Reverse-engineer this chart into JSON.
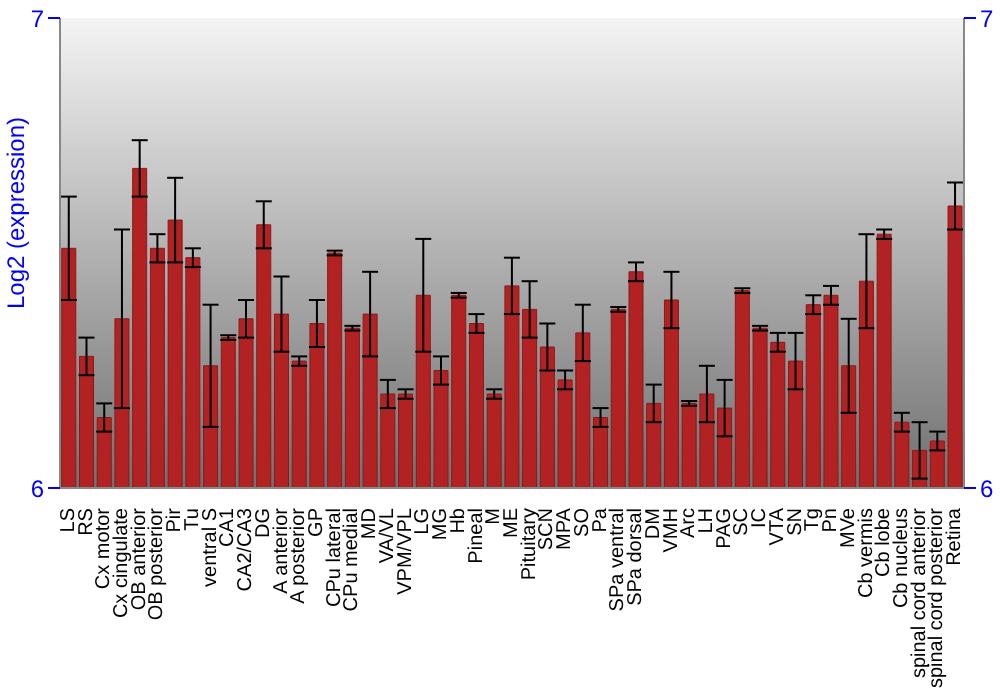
{
  "chart_data": {
    "type": "bar",
    "ylabel": "Log2 (expression)",
    "color": "#b22222",
    "categories": [
      "LS",
      "RS",
      "Cx motor",
      "Cx cingulate",
      "OB anterior",
      "OB posterior",
      "Pir",
      "Tu",
      "ventral S",
      "CA1",
      "CA2/CA3",
      "DG",
      "A anterior",
      "A posterior",
      "GP",
      "CPu lateral",
      "CPu medial",
      "MD",
      "VA/VL",
      "VPM/VPL",
      "LG",
      "MG",
      "Hb",
      "Pineal",
      "M",
      "ME",
      "Pituitary",
      "SCN",
      "MPA",
      "SO",
      "Pa",
      "SPa ventral",
      "SPa dorsal",
      "DM",
      "VMH",
      "Arc",
      "LH",
      "PAG",
      "SC",
      "IC",
      "VTA",
      "SN",
      "Tg",
      "Pn",
      "MVe",
      "Cb vermis",
      "Cb lobe",
      "Cb nucleus",
      "spinal cord anterior",
      "spinal cord posterior",
      "Retina"
    ],
    "values": [
      6.51,
      6.28,
      6.15,
      6.36,
      6.68,
      6.51,
      6.57,
      6.49,
      6.26,
      6.32,
      6.36,
      6.56,
      6.37,
      6.27,
      6.35,
      6.5,
      6.34,
      6.37,
      6.2,
      6.2,
      6.41,
      6.25,
      6.41,
      6.35,
      6.2,
      6.43,
      6.38,
      6.3,
      6.23,
      6.33,
      6.15,
      6.38,
      6.46,
      6.18,
      6.4,
      6.18,
      6.2,
      6.17,
      6.42,
      6.34,
      6.31,
      6.27,
      6.39,
      6.41,
      6.26,
      6.44,
      6.54,
      6.14,
      6.08,
      6.1,
      6.6
    ],
    "errors": [
      0.11,
      0.04,
      0.03,
      0.19,
      0.06,
      0.03,
      0.09,
      0.02,
      0.13,
      0.005,
      0.04,
      0.05,
      0.08,
      0.01,
      0.05,
      0.005,
      0.005,
      0.09,
      0.03,
      0.01,
      0.12,
      0.03,
      0.005,
      0.02,
      0.01,
      0.06,
      0.06,
      0.05,
      0.02,
      0.06,
      0.02,
      0.005,
      0.02,
      0.04,
      0.06,
      0.005,
      0.06,
      0.06,
      0.005,
      0.005,
      0.02,
      0.06,
      0.02,
      0.02,
      0.1,
      0.1,
      0.01,
      0.02,
      0.06,
      0.02,
      0.05
    ],
    "ylim": [
      6,
      7
    ],
    "yticks": [
      6,
      7
    ],
    "y2lim": [
      6,
      7
    ],
    "y2ticks": [
      6,
      7
    ]
  }
}
